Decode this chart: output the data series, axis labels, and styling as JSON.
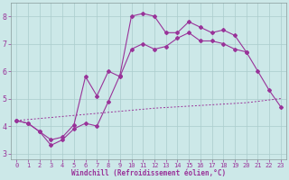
{
  "xlabel": "Windchill (Refroidissement éolien,°C)",
  "background_color": "#cce8e8",
  "grid_color": "#aacccc",
  "line_color": "#993399",
  "xlim_min": -0.5,
  "xlim_max": 23.5,
  "ylim_min": 2.8,
  "ylim_max": 8.5,
  "xticks": [
    0,
    1,
    2,
    3,
    4,
    5,
    6,
    7,
    8,
    9,
    10,
    11,
    12,
    13,
    14,
    15,
    16,
    17,
    18,
    19,
    20,
    21,
    22,
    23
  ],
  "yticks": [
    3,
    4,
    5,
    6,
    7,
    8
  ],
  "curve_top_x": [
    0,
    1,
    2,
    3,
    4,
    5,
    6,
    7,
    8,
    9,
    10,
    11,
    12,
    13,
    14,
    15,
    16,
    17,
    18,
    19,
    20,
    21,
    22,
    23
  ],
  "curve_top_y": [
    4.2,
    4.1,
    3.8,
    3.3,
    3.5,
    3.9,
    4.1,
    4.0,
    4.9,
    5.85,
    8.0,
    8.1,
    8.0,
    7.4,
    7.4,
    7.8,
    7.6,
    7.4,
    7.5,
    7.3,
    6.7,
    6.0,
    5.3,
    4.7
  ],
  "curve_mid_x": [
    0,
    1,
    2,
    3,
    4,
    5,
    6,
    7,
    8,
    9,
    10,
    11,
    12,
    13,
    14,
    15,
    16,
    17,
    18,
    19,
    20
  ],
  "curve_mid_y": [
    4.2,
    4.1,
    3.8,
    3.5,
    3.6,
    4.05,
    5.8,
    5.1,
    6.0,
    5.8,
    6.8,
    7.0,
    6.8,
    6.9,
    7.2,
    7.4,
    7.1,
    7.1,
    7.0,
    6.8,
    6.7
  ],
  "curve_diag_x": [
    0,
    4,
    8,
    12,
    16,
    20,
    23
  ],
  "curve_diag_y": [
    4.2,
    4.35,
    4.5,
    4.65,
    4.75,
    4.85,
    5.0
  ]
}
